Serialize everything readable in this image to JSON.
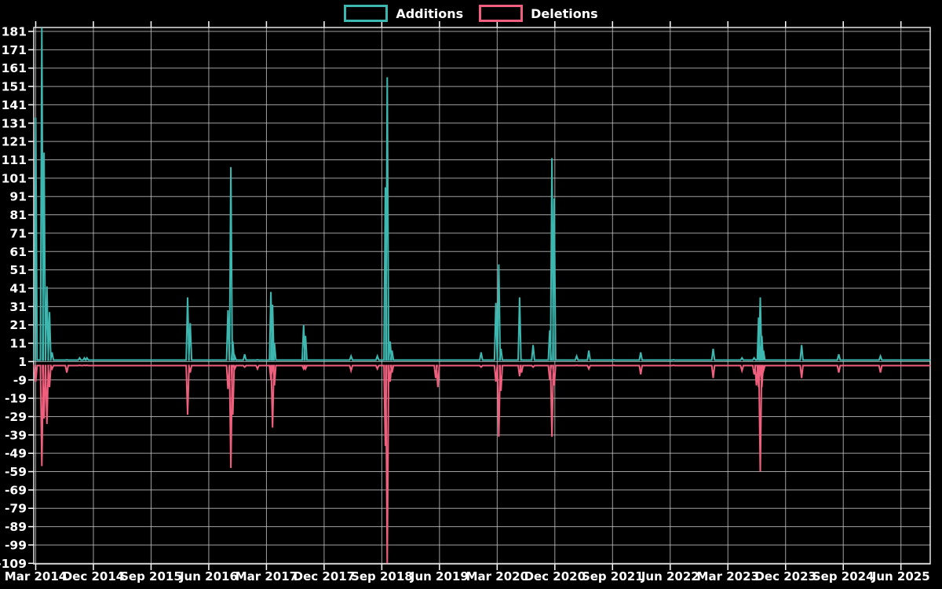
{
  "page": {
    "background": "#000000",
    "text_color": "#ffffff"
  },
  "chart_data": {
    "type": "line",
    "title": "",
    "legend": {
      "position": "top-center",
      "entries": [
        {
          "label": "Additions",
          "color": "#3cb8b0"
        },
        {
          "label": "Deletions",
          "color": "#f0607e"
        }
      ]
    },
    "background": "#000000",
    "grid": {
      "on": true,
      "color": "#c9c9c9",
      "border_color": "#e6e6e6"
    },
    "axis": {
      "text_color": "#ffffff"
    },
    "x": {
      "unit": "months since Mar 2014",
      "min": -0.35,
      "max": 139.6,
      "tick_step_months": 9,
      "tick_labels": [
        "Mar 2014",
        "Dec 2014",
        "Sep 2015",
        "Jun 2016",
        "Mar 2017",
        "Dec 2017",
        "Sep 2018",
        "Jun 2019",
        "Mar 2020",
        "Dec 2020",
        "Sep 2021",
        "Jun 2022",
        "Mar 2023",
        "Dec 2023",
        "Sep 2024",
        "Jun 2025"
      ]
    },
    "y": {
      "min": -109,
      "max": 181,
      "tick_step": 10,
      "tick_labels": [
        "181",
        "171",
        "161",
        "151",
        "141",
        "131",
        "121",
        "111",
        "101",
        "91",
        "81",
        "71",
        "61",
        "51",
        "41",
        "31",
        "21",
        "11",
        "1",
        "-9",
        "-19",
        "-29",
        "-39",
        "-49",
        "-59",
        "-69",
        "-79",
        "-89",
        "-99",
        "-109"
      ]
    },
    "series": [
      {
        "name": "Additions",
        "color": "#3cb8b0",
        "baseline": 1.8
      },
      {
        "name": "Deletions",
        "color": "#f0607e",
        "baseline": -1.2
      }
    ],
    "events_columns": [
      "months_since_mar_2014",
      "additions",
      "deletions"
    ],
    "events": [
      [
        0.0,
        134,
        -10
      ],
      [
        0.95,
        183,
        -56
      ],
      [
        1.3,
        115,
        -30
      ],
      [
        1.75,
        42,
        -33
      ],
      [
        2.15,
        28,
        -13
      ],
      [
        2.55,
        6,
        -3
      ],
      [
        4.85,
        2,
        -5
      ],
      [
        6.85,
        3,
        -1
      ],
      [
        7.6,
        3,
        -1
      ],
      [
        8.0,
        3,
        -1
      ],
      [
        23.7,
        36,
        -28
      ],
      [
        24.1,
        22,
        -5
      ],
      [
        30.0,
        29,
        -14
      ],
      [
        30.45,
        107,
        -57
      ],
      [
        30.75,
        12,
        -28
      ],
      [
        31.05,
        4,
        -3
      ],
      [
        32.6,
        5,
        -2
      ],
      [
        34.6,
        2,
        -3
      ],
      [
        36.7,
        39,
        -9
      ],
      [
        36.95,
        32,
        -35
      ],
      [
        37.25,
        11,
        -12
      ],
      [
        41.8,
        21,
        -3
      ],
      [
        42.1,
        15,
        -3
      ],
      [
        49.2,
        4,
        -4
      ],
      [
        53.3,
        4,
        -3
      ],
      [
        54.55,
        96,
        -45
      ],
      [
        54.85,
        156,
        -109
      ],
      [
        55.3,
        12,
        -10
      ],
      [
        55.6,
        7,
        -5
      ],
      [
        62.4,
        1,
        -8
      ],
      [
        62.75,
        1,
        -13
      ],
      [
        69.5,
        6,
        -2
      ],
      [
        71.8,
        33,
        -10
      ],
      [
        72.25,
        54,
        -40
      ],
      [
        72.6,
        8,
        -15
      ],
      [
        75.5,
        36,
        -7
      ],
      [
        75.8,
        2,
        -5
      ],
      [
        77.6,
        10,
        -2
      ],
      [
        80.2,
        18,
        -9
      ],
      [
        80.55,
        112,
        -40
      ],
      [
        80.9,
        90,
        -12
      ],
      [
        84.4,
        4,
        -1
      ],
      [
        86.3,
        7,
        -3
      ],
      [
        90.2,
        2,
        -1
      ],
      [
        94.4,
        6,
        -6
      ],
      [
        99.5,
        2,
        -1
      ],
      [
        105.7,
        8,
        -8
      ],
      [
        110.2,
        3,
        -4
      ],
      [
        112.1,
        3,
        -6
      ],
      [
        112.45,
        2,
        -12
      ],
      [
        112.8,
        25,
        -13
      ],
      [
        113.05,
        36,
        -59
      ],
      [
        113.3,
        15,
        -13
      ],
      [
        113.55,
        7,
        -4
      ],
      [
        119.5,
        10,
        -8
      ],
      [
        125.3,
        5,
        -5
      ],
      [
        131.8,
        4,
        -5
      ]
    ]
  }
}
